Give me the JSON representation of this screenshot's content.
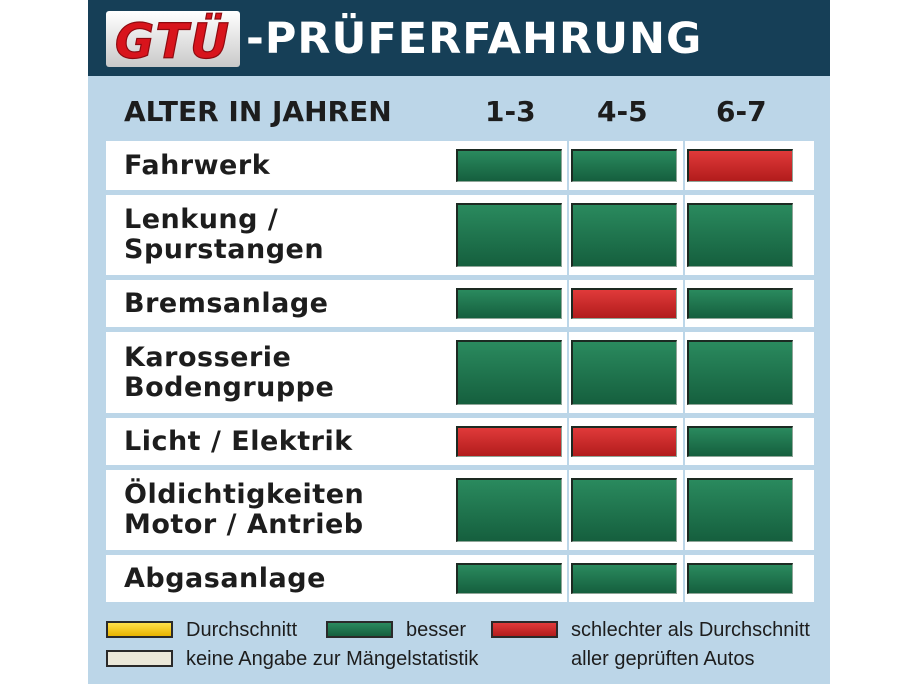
{
  "header": {
    "logo_text": "GTÜ",
    "title": "-PRÜFERFAHRUNG"
  },
  "columns": {
    "label": "ALTER IN JAHREN",
    "ages": [
      "1-3",
      "4-5",
      "6-7"
    ]
  },
  "rating_colors": {
    "besser": "#1d7a51",
    "schlechter": "#c92a2a",
    "durchschnitt": "#f4c400",
    "keine_angabe": "#ebe8d9"
  },
  "rows": [
    {
      "lines": [
        "Fahrwerk"
      ],
      "ratings": [
        "besser",
        "besser",
        "schlechter"
      ]
    },
    {
      "lines": [
        "Lenkung /",
        "Spurstangen"
      ],
      "ratings": [
        "besser",
        "besser",
        "besser"
      ]
    },
    {
      "lines": [
        "Bremsanlage"
      ],
      "ratings": [
        "besser",
        "schlechter",
        "besser"
      ]
    },
    {
      "lines": [
        "Karosserie",
        "Bodengruppe"
      ],
      "ratings": [
        "besser",
        "besser",
        "besser"
      ]
    },
    {
      "lines": [
        "Licht / Elektrik"
      ],
      "ratings": [
        "schlechter",
        "schlechter",
        "besser"
      ]
    },
    {
      "lines": [
        "Öldichtigkeiten",
        "Motor / Antrieb"
      ],
      "ratings": [
        "besser",
        "besser",
        "besser"
      ]
    },
    {
      "lines": [
        "Abgasanlage"
      ],
      "ratings": [
        "besser",
        "besser",
        "besser"
      ]
    }
  ],
  "legend": {
    "durchschnitt": "Durchschnitt",
    "besser": "besser",
    "schlechter_line1": "schlechter als Durchschnitt",
    "keine_angabe": "keine Angabe zur Mängelstatistik",
    "schlechter_line2": "aller geprüften Autos"
  }
}
